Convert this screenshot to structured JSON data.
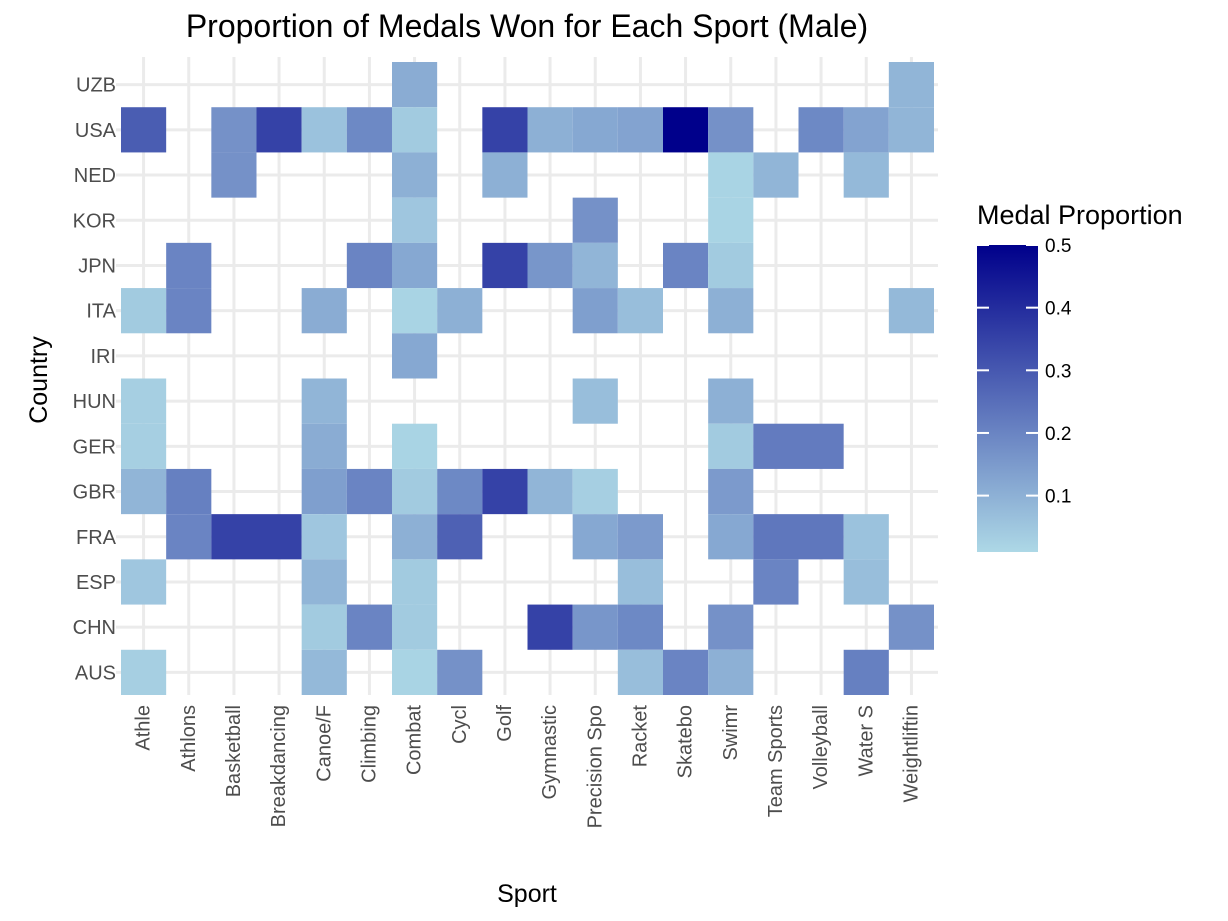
{
  "chart_data": {
    "type": "heatmap",
    "title": "Proportion of Medals Won for Each Sport (Male)",
    "xlabel": "Sport",
    "ylabel": "Country",
    "x_categories": [
      "Athletics",
      "Athlons",
      "Basketball",
      "Breakdancing",
      "Canoe/Kayak",
      "Climbing",
      "Combat Sports",
      "Cycling",
      "Golf",
      "Gymnastics",
      "Precision Sports",
      "Racket Sports",
      "Skateboarding",
      "Swimming",
      "Team Sports",
      "Volleyball",
      "Water Sports",
      "Weightlifting"
    ],
    "x_tick_labels": [
      "Athle",
      "Athlons",
      "Basketball",
      "Breakdancing",
      "Canoe/F",
      "Climbing",
      "Combat",
      "Cycl",
      "Golf",
      "Gymnastic",
      "Precision Spo",
      "Racket",
      "Skatebo",
      "Swimr",
      "Team Sports",
      "Volleyball",
      "Water S",
      "Weightliftin"
    ],
    "y_categories": [
      "AUS",
      "CHN",
      "ESP",
      "FRA",
      "GBR",
      "GER",
      "HUN",
      "IRI",
      "ITA",
      "JPN",
      "KOR",
      "NED",
      "USA",
      "UZB"
    ],
    "cells": [
      {
        "country": "UZB",
        "values": [
          null,
          null,
          null,
          null,
          null,
          null,
          0.11,
          null,
          null,
          null,
          null,
          null,
          null,
          null,
          null,
          null,
          null,
          0.09
        ]
      },
      {
        "country": "USA",
        "values": [
          0.29,
          null,
          0.17,
          0.35,
          0.06,
          0.19,
          0.04,
          null,
          0.35,
          0.1,
          0.12,
          0.13,
          0.5,
          0.17,
          null,
          0.19,
          0.13,
          0.09
        ]
      },
      {
        "country": "NED",
        "values": [
          null,
          null,
          0.17,
          null,
          null,
          null,
          0.1,
          null,
          0.1,
          null,
          null,
          null,
          null,
          0.02,
          0.09,
          null,
          0.08,
          null
        ]
      },
      {
        "country": "KOR",
        "values": [
          null,
          null,
          null,
          null,
          null,
          null,
          0.05,
          null,
          null,
          null,
          0.17,
          null,
          null,
          0.02,
          null,
          null,
          null,
          null
        ]
      },
      {
        "country": "JPN",
        "values": [
          null,
          0.2,
          null,
          null,
          null,
          0.2,
          0.12,
          null,
          0.35,
          0.16,
          0.09,
          null,
          0.2,
          0.04,
          null,
          null,
          null,
          null
        ]
      },
      {
        "country": "ITA",
        "values": [
          0.04,
          0.2,
          null,
          null,
          0.11,
          null,
          0.02,
          0.1,
          null,
          null,
          0.14,
          0.07,
          null,
          0.1,
          null,
          null,
          null,
          0.08
        ]
      },
      {
        "country": "IRI",
        "values": [
          null,
          null,
          null,
          null,
          null,
          null,
          0.12,
          null,
          null,
          null,
          null,
          null,
          null,
          null,
          null,
          null,
          null,
          null
        ]
      },
      {
        "country": "HUN",
        "values": [
          0.03,
          null,
          null,
          null,
          0.09,
          null,
          null,
          null,
          null,
          null,
          0.07,
          null,
          null,
          0.1,
          null,
          null,
          null,
          null
        ]
      },
      {
        "country": "GER",
        "values": [
          0.03,
          null,
          null,
          null,
          0.11,
          null,
          0.02,
          null,
          null,
          null,
          null,
          null,
          null,
          0.04,
          0.22,
          0.22,
          null,
          null
        ]
      },
      {
        "country": "GBR",
        "values": [
          0.09,
          0.21,
          null,
          null,
          0.14,
          0.2,
          0.04,
          0.19,
          0.35,
          0.09,
          0.03,
          null,
          null,
          0.15,
          null,
          null,
          null,
          null
        ]
      },
      {
        "country": "FRA",
        "values": [
          null,
          0.2,
          0.35,
          0.35,
          0.05,
          null,
          0.1,
          0.28,
          null,
          null,
          0.12,
          0.15,
          null,
          0.12,
          0.23,
          0.23,
          0.06,
          null
        ]
      },
      {
        "country": "ESP",
        "values": [
          0.05,
          null,
          null,
          null,
          0.09,
          null,
          0.04,
          null,
          null,
          null,
          null,
          0.07,
          null,
          null,
          0.2,
          null,
          0.07,
          null
        ]
      },
      {
        "country": "CHN",
        "values": [
          null,
          null,
          null,
          null,
          0.04,
          0.2,
          0.04,
          null,
          null,
          0.35,
          0.16,
          0.19,
          null,
          0.17,
          null,
          null,
          null,
          0.17
        ]
      },
      {
        "country": "AUS",
        "values": [
          0.03,
          null,
          null,
          null,
          0.08,
          null,
          0.02,
          0.17,
          null,
          null,
          null,
          0.07,
          0.2,
          0.1,
          null,
          null,
          0.21,
          null
        ]
      }
    ],
    "legend": {
      "title": "Medal Proportion",
      "ticks": [
        0.1,
        0.2,
        0.3,
        0.4,
        0.5
      ],
      "tick_labels": [
        "0.1",
        "0.2",
        "0.3",
        "0.4",
        "0.5"
      ],
      "range": [
        0.01,
        0.5
      ],
      "position": "right"
    },
    "colors": {
      "low": "#add8e6",
      "high": "#00008b",
      "grid": "#ebebeb",
      "background": "#ffffff"
    },
    "grid": true
  }
}
